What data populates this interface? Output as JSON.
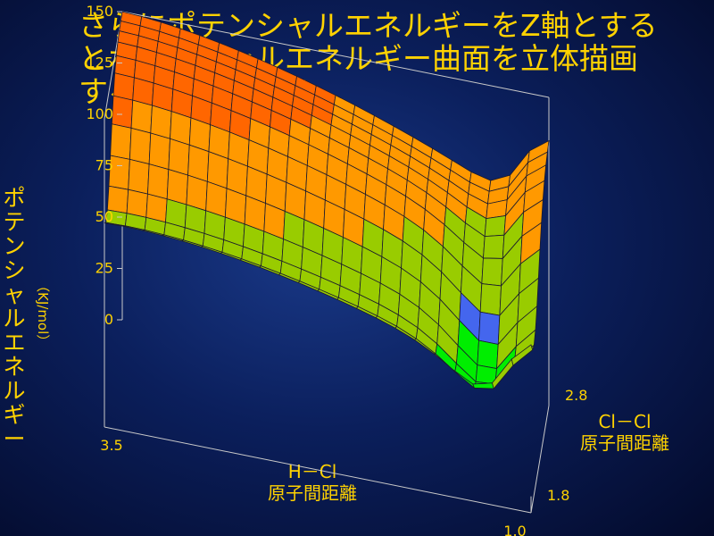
{
  "title": [
    "さらにポテンシャルエネルギーをZ軸とする",
    "とポテンシャルエネルギー曲面を立体描画",
    "することができる。"
  ],
  "colors": {
    "background": "#0b1f5c",
    "text": "#ffd200",
    "axis": "#c9c9c9",
    "bands": [
      "#00ccff",
      "#00ee00",
      "#99cc00",
      "#ff9900",
      "#ff6600",
      "#4466ee"
    ]
  },
  "chart_data": {
    "type": "surface",
    "title": "",
    "zlabel": "ポテンシャルエネルギー",
    "zunit": "（KJ/mol）",
    "xlabel": "H－Cl",
    "xlabel2": "原子間距離",
    "ylabel": "Cl－Cl",
    "ylabel2": "原子間距離",
    "zticks": [
      "0",
      "25",
      "50",
      "75",
      "100",
      "125",
      "150"
    ],
    "zlim": [
      0,
      150
    ],
    "xticks": [
      "3.5",
      "1.0"
    ],
    "xlim": [
      3.5,
      1.0
    ],
    "yticks": [
      "1.8",
      "2.8"
    ],
    "ylim": [
      1.8,
      2.8
    ],
    "grid": false,
    "contour_levels": [
      25,
      50,
      75,
      100,
      125
    ]
  }
}
